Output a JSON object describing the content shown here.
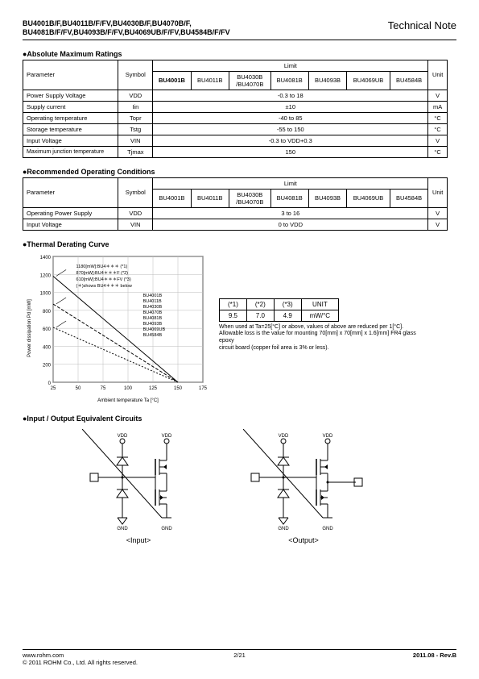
{
  "header": {
    "parts_line1": "BU4001B/F,BU4011B/F/FV,BU4030B/F,BU4070B/F,",
    "parts_line2": "BU4081B/F/FV,BU4093B/F/FV,BU4069UB/F/FV,BU4584B/F/FV",
    "tech_note": "Technical Note"
  },
  "sections": {
    "abs_max": "●Absolute Maximum Ratings",
    "rec_op": "●Recommended Operating Conditions",
    "thermal": "●Thermal Derating Curve",
    "io_circ": "●Input / Output Equivalent Circuits"
  },
  "abs_table": {
    "h_param": "Parameter",
    "h_sym": "Symbol",
    "h_limit": "Limit",
    "h_unit": "Unit",
    "p_bold": "BU4001B",
    "parts": [
      "BU4011B",
      "BU4030B\n/BU4070B",
      "BU4081B",
      "BU4093B",
      "BU4069UB",
      "BU4584B"
    ],
    "rows": [
      {
        "p": "Power Supply Voltage",
        "s": "VDD",
        "v": "-0.3 to 18",
        "u": "V"
      },
      {
        "p": "Supply current",
        "s": "Iin",
        "v": "±10",
        "u": "mA"
      },
      {
        "p": "Operating temperature",
        "s": "Topr",
        "v": "-40 to 85",
        "u": "°C"
      },
      {
        "p": "Storage temperature",
        "s": "Tstg",
        "v": "-55 to 150",
        "u": "°C"
      },
      {
        "p": "Input Voltage",
        "s": "VIN",
        "v": "-0.3 to VDD+0.3",
        "u": "V"
      },
      {
        "p": "Maximum junction temperature",
        "s": "Tjmax",
        "v": "150",
        "u": "°C"
      }
    ]
  },
  "rec_table": {
    "parts": [
      "BU4001B",
      "BU4011B",
      "BU4030B\n/BU4070B",
      "BU4081B",
      "BU4093B",
      "BU4069UB",
      "BU4584B"
    ],
    "rows": [
      {
        "p": "Operating Power Supply",
        "s": "VDD",
        "v": "3 to 16",
        "u": "V"
      },
      {
        "p": "Input Voltage",
        "s": "VIN",
        "v": "0 to VDD",
        "u": "V"
      }
    ]
  },
  "derating_chart": {
    "y_label": "Power dissipation   Pd     [mW]",
    "x_label": "Ambient temperature   Ta    [°C]",
    "y_max": 1400,
    "y_ticks": [
      0,
      200,
      400,
      600,
      800,
      1000,
      1200,
      1400
    ],
    "x_min": 25,
    "x_max": 175,
    "x_ticks": [
      25,
      50,
      75,
      100,
      125,
      150,
      175
    ],
    "legend_lines": [
      "1180[mW]:BU4＊＊＊  (*1)",
      "870[mW]:BU4＊＊＊F  (*2)",
      "610[mW]:BU4＊＊＊FV  (*3)",
      "(＊)shows BU4＊＊＊ below"
    ],
    "part_list_small": [
      "BU4001B",
      "BU4011B",
      "BU4030B",
      "BU4070B",
      "BU4081B",
      "BU4093B",
      "BU4069UB",
      "BU4584B"
    ]
  },
  "unit_table": {
    "h1": "(*1)",
    "h2": "(*2)",
    "h3": "(*3)",
    "h4": "UNIT",
    "v1": "9.5",
    "v2": "7.0",
    "v3": "4.9",
    "v4": "mW/°C"
  },
  "derating_note": "When used at Ta=25[°C] or above, values of above are reduced per 1[°C].\nAllowable loss is the value for mounting   70[mm] x 70[mm] x 1.6[mm] FR4 glass epoxy\ncircuit board (copper foil area is 3% or less).",
  "circuits": {
    "vdd": "VDD",
    "gnd": "GND",
    "input_label": "<Input>",
    "output_label": "<Output>"
  },
  "footer": {
    "url": "www.rohm.com",
    "copyright": "© 2011 ROHM Co., Ltd. All rights reserved.",
    "page": "2/21",
    "rev": "2011.08 - Rev.B"
  }
}
